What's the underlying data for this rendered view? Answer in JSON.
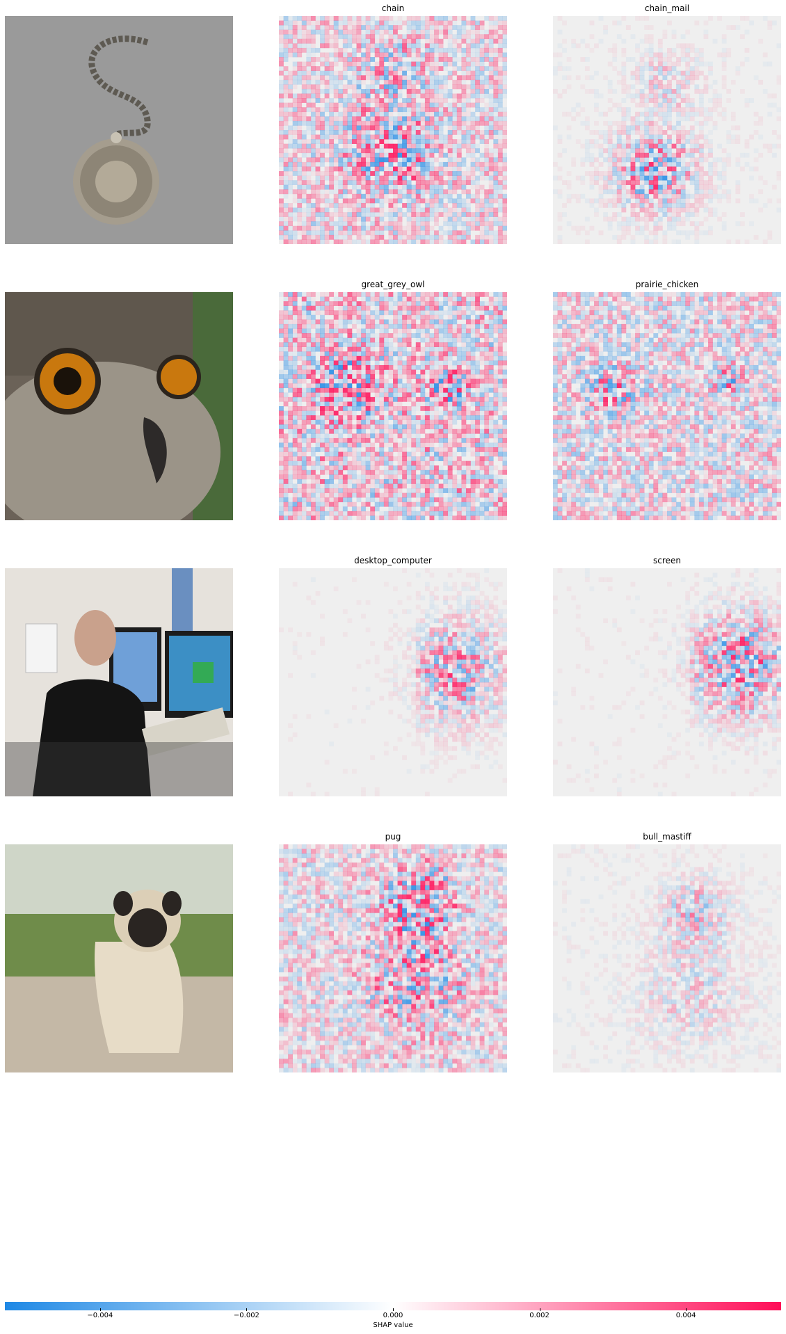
{
  "figure": {
    "rows": [
      {
        "image_subject": "pocket watch on chain",
        "explanations": [
          {
            "label": "chain"
          },
          {
            "label": "chain_mail"
          }
        ]
      },
      {
        "image_subject": "owl face close-up",
        "explanations": [
          {
            "label": "great_grey_owl"
          },
          {
            "label": "prairie_chicken"
          }
        ]
      },
      {
        "image_subject": "man at desktop computer",
        "explanations": [
          {
            "label": "desktop_computer"
          },
          {
            "label": "screen"
          }
        ]
      },
      {
        "image_subject": "pug sitting on gravel path",
        "explanations": [
          {
            "label": "pug"
          },
          {
            "label": "bull_mastiff"
          }
        ]
      }
    ]
  },
  "chart_data": {
    "type": "heatmap",
    "title": "",
    "colorbar": {
      "label": "SHAP value",
      "range": [
        -0.0053,
        0.0053
      ],
      "ticks": [
        -0.004,
        -0.002,
        0.0,
        0.002,
        0.004
      ],
      "tick_labels": [
        "−0.004",
        "−0.002",
        "0.000",
        "0.002",
        "0.004"
      ],
      "negative_color": "#1e88e5",
      "neutral_color": "#ffffff",
      "positive_color": "#ff0d57"
    }
  }
}
